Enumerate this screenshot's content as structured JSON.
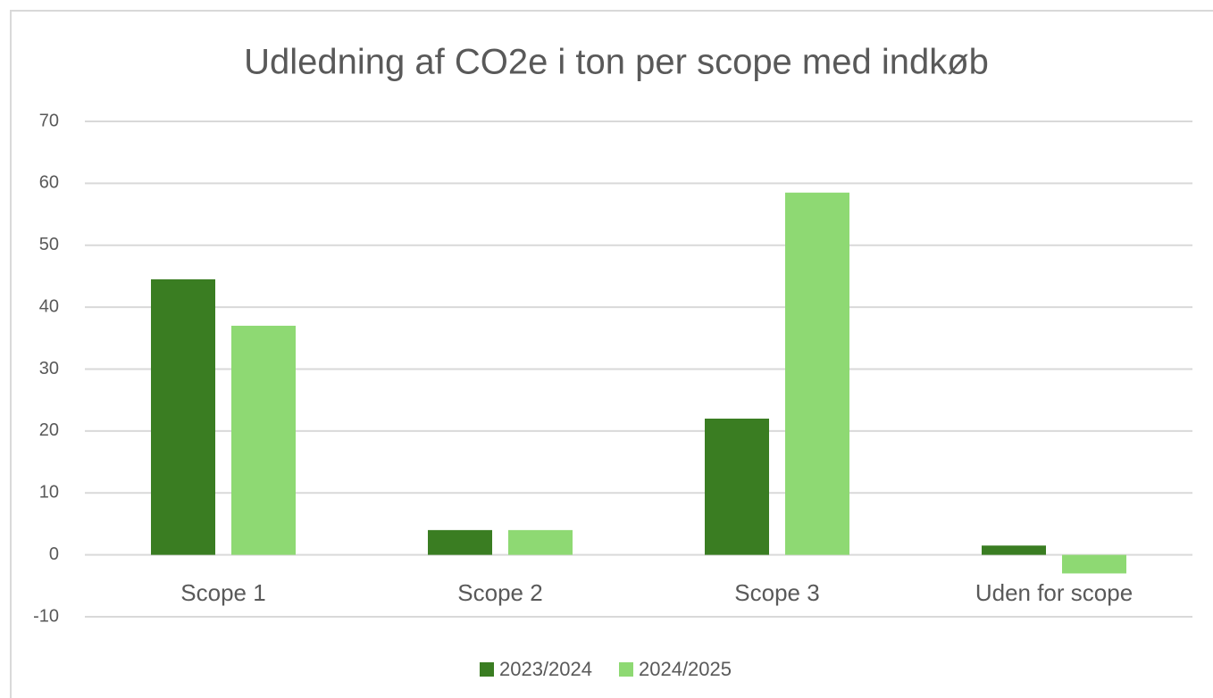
{
  "chart_data": {
    "type": "bar",
    "title": "Udledning af CO2e i ton per scope med indkøb",
    "categories": [
      "Scope 1",
      "Scope 2",
      "Scope 3",
      "Uden for scope"
    ],
    "series": [
      {
        "name": "2023/2024",
        "color": "#3a7d22",
        "values": [
          44.5,
          4,
          22,
          1.5
        ]
      },
      {
        "name": "2024/2025",
        "color": "#8ed973",
        "values": [
          37,
          4,
          58.5,
          -3
        ]
      }
    ],
    "ylim": [
      -10,
      70
    ],
    "yticks": [
      -10,
      0,
      10,
      20,
      30,
      40,
      50,
      60,
      70
    ],
    "grid": true,
    "legend": "bottom"
  }
}
